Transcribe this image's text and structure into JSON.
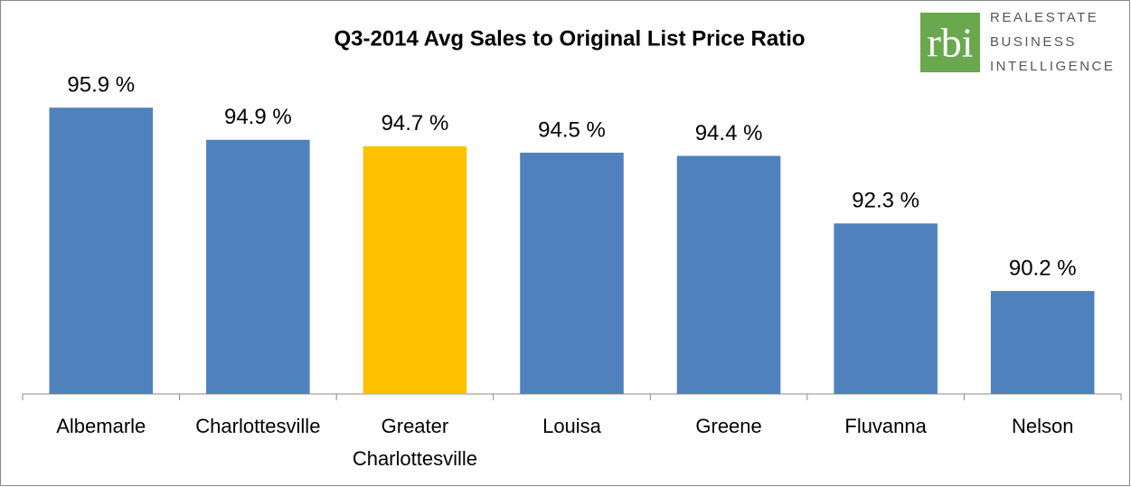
{
  "chart_data": {
    "type": "bar",
    "title": "Q3-2014 Avg Sales to Original List Price Ratio",
    "categories": [
      "Albemarle",
      "Charlottesville",
      "Greater Charlottesville",
      "Louisa",
      "Greene",
      "Fluvanna",
      "Nelson"
    ],
    "values": [
      95.9,
      94.9,
      94.7,
      94.5,
      94.4,
      92.3,
      90.2
    ],
    "value_labels": [
      "95.9 %",
      "94.9 %",
      "94.7 %",
      "94.5 %",
      "94.4 %",
      "92.3 %",
      "90.2 %"
    ],
    "colors": [
      "#4f81bd",
      "#4f81bd",
      "#ffc000",
      "#4f81bd",
      "#4f81bd",
      "#4f81bd",
      "#4f81bd"
    ],
    "ylim": [
      87,
      97
    ]
  },
  "logo": {
    "mark": "rbi",
    "lines": [
      "REALESTATE",
      "BUSINESS",
      "INTELLIGENCE"
    ]
  }
}
